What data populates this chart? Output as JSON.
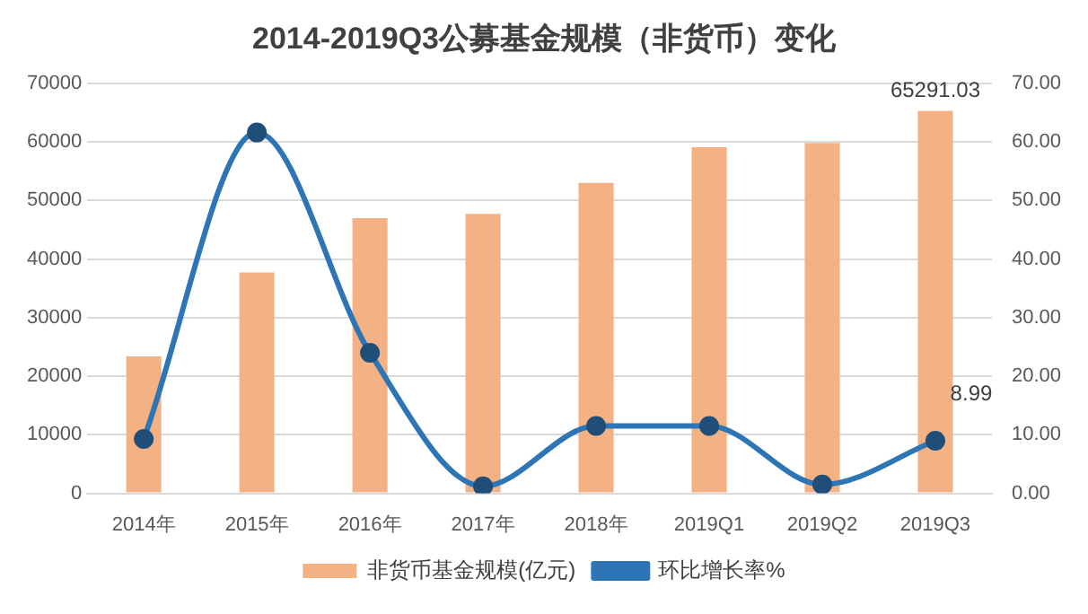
{
  "chart_data": {
    "type": "bar",
    "title": "2014-2019Q3公募基金规模（非货币）变化",
    "categories": [
      "2014年",
      "2015年",
      "2016年",
      "2017年",
      "2018年",
      "2019Q1",
      "2019Q2",
      "2019Q3"
    ],
    "series": [
      {
        "name": "非货币基金规模(亿元)",
        "color": "#f4b183",
        "values": [
          23400,
          37700,
          47000,
          47700,
          53000,
          59100,
          59800,
          65291.03
        ],
        "value_labels": [
          null,
          null,
          null,
          null,
          null,
          null,
          null,
          "65291.03"
        ]
      },
      {
        "name": "环比增长率%",
        "type": "line",
        "axis": "y2",
        "color": "#2e75b6",
        "marker": "circle",
        "values": [
          9.3,
          61.6,
          24.0,
          1.2,
          11.5,
          11.5,
          1.5,
          8.99
        ],
        "value_labels": [
          null,
          null,
          null,
          null,
          null,
          null,
          null,
          "8.99"
        ]
      }
    ],
    "ylim": [
      0,
      70000
    ],
    "yticks": [
      0,
      10000,
      20000,
      30000,
      40000,
      50000,
      60000,
      70000
    ],
    "y2lim": [
      0,
      70
    ],
    "y2ticks": [
      {
        "value": 0,
        "label": "0.00"
      },
      {
        "value": 10,
        "label": "10.00"
      },
      {
        "value": 20,
        "label": "20.00"
      },
      {
        "value": 30,
        "label": "30.00"
      },
      {
        "value": 40,
        "label": "40.00"
      },
      {
        "value": 50,
        "label": "50.00"
      },
      {
        "value": 60,
        "label": "60.00"
      },
      {
        "value": 70,
        "label": "70.00"
      }
    ],
    "grid": "y",
    "legend": "bottom"
  }
}
